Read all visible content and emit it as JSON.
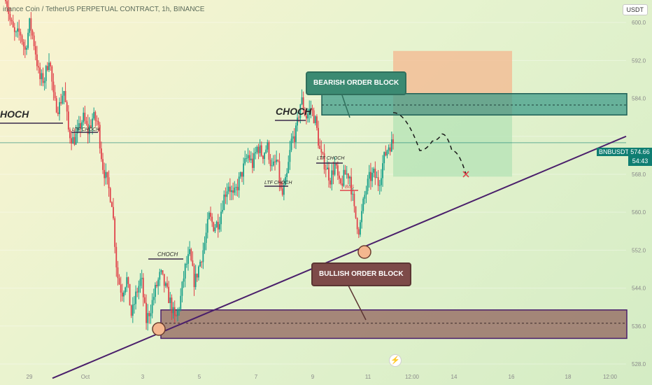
{
  "header": {
    "title": "inance Coin / TetherUS PERPETUAL CONTRACT, 1h, BINANCE",
    "currency": "USDT"
  },
  "price_tag": {
    "symbol": "BNBUSDT.P",
    "price": "574.66",
    "countdown": "54:43"
  },
  "colors": {
    "bull_candle": "#18a08a",
    "bear_candle": "#e0424a",
    "bearish_zone": "#3f9c8a",
    "bullish_zone": "#8b5a55",
    "trendline": "#4a1f6b",
    "target_zone": "#f4b78f",
    "stop_zone": "#b7e4b7"
  },
  "annotations": {
    "choch_left": "HOCH",
    "choch_top": "CHOCH",
    "choch_low": "CHOCH",
    "ltf_choch_1": "LTF CHOCH",
    "ltf_choch_2": "LTF CHOCH",
    "ltf_choch_3": "LTF CHOCH",
    "bos": "BoS",
    "bearish_ob": "BEARISH ORDER BLOCK",
    "bullish_ob": "BULLISH ORDER BLOCK"
  },
  "chart_data": {
    "type": "candlestick",
    "y_axis": {
      "min": 528,
      "max": 604,
      "ticks": [
        528,
        536,
        544,
        552,
        560,
        568,
        576,
        584,
        592,
        600
      ]
    },
    "x_axis": {
      "ticks": [
        "29",
        "Oct",
        "3",
        "5",
        "7",
        "9",
        "11",
        "12:00",
        "14",
        "16",
        "18",
        "12:00"
      ]
    },
    "close_path": [
      606,
      600,
      597,
      598,
      594,
      600,
      595,
      588,
      588,
      593,
      583,
      582,
      586,
      577,
      575,
      577,
      580,
      577,
      580,
      579,
      570,
      566,
      562,
      547,
      543,
      546,
      538,
      543,
      546,
      537,
      540,
      544,
      547,
      544,
      541,
      537,
      541,
      548,
      551,
      545,
      549,
      553,
      559,
      557,
      558,
      563,
      566,
      563,
      566,
      569,
      572,
      570,
      574,
      572,
      574,
      569,
      571,
      563,
      567,
      575,
      577,
      584,
      580,
      582,
      579,
      572,
      570,
      567,
      570,
      565,
      568,
      568,
      560,
      556,
      563,
      567,
      568,
      566,
      571,
      574,
      574.66
    ],
    "bearish_order_block": {
      "top": 585,
      "bottom": 580.5,
      "mid": 582.6
    },
    "bullish_order_block": {
      "top": 539.4,
      "bottom": 533.4,
      "mid": 536.6
    },
    "current_price": 574.66,
    "trade_target_zone": {
      "top": 594,
      "bottom": 580.5
    },
    "trade_profit_zone": {
      "top": 580.5,
      "bottom": 567.5
    },
    "projection_path": [
      581,
      573,
      575,
      576.5,
      573,
      568
    ],
    "projection_target": 568,
    "trendline": {
      "y_start": 525,
      "y_end": 576
    }
  }
}
